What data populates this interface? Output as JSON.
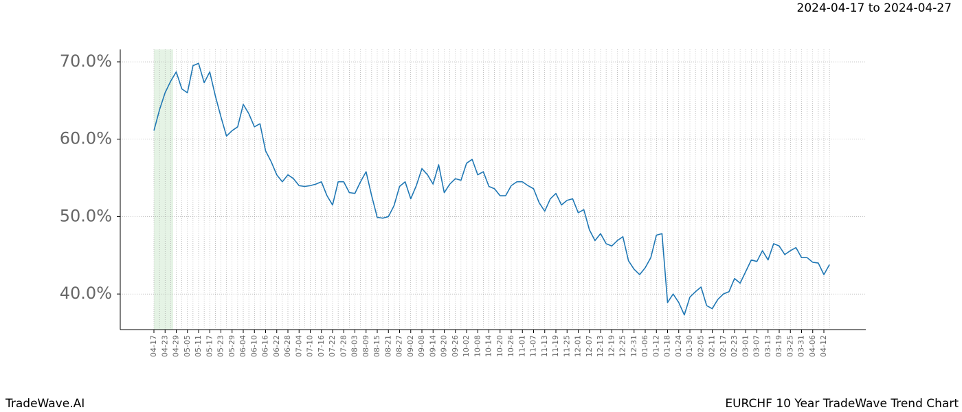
{
  "header": "2024-04-17 to 2024-04-27",
  "footer_left": "TradeWave.AI",
  "footer_right": "EURCHF 10 Year TradeWave Trend Chart",
  "chart_data": {
    "type": "line",
    "color": "#1f77b4",
    "grid": true,
    "ylim": [
      35.4,
      71.6
    ],
    "yticks": [
      {
        "value": 40,
        "label": "40.0%"
      },
      {
        "value": 50,
        "label": "50.0%"
      },
      {
        "value": 60,
        "label": "60.0%"
      },
      {
        "value": 70,
        "label": "70.0%"
      }
    ],
    "categories": [
      "04-17",
      null,
      "04-23",
      null,
      "04-29",
      null,
      "05-05",
      null,
      "05-11",
      null,
      "05-17",
      null,
      "05-23",
      null,
      "05-29",
      null,
      "06-04",
      null,
      "06-10",
      null,
      "06-16",
      null,
      "06-22",
      null,
      "06-28",
      null,
      "07-04",
      null,
      "07-10",
      null,
      "07-16",
      null,
      "07-22",
      null,
      "07-28",
      null,
      "08-03",
      null,
      "08-09",
      null,
      "08-15",
      null,
      "08-21",
      null,
      "08-27",
      null,
      "09-02",
      null,
      "09-08",
      null,
      "09-14",
      null,
      "09-20",
      null,
      "09-26",
      null,
      "10-02",
      null,
      "10-08",
      null,
      "10-14",
      null,
      "10-20",
      null,
      "10-26",
      null,
      "11-01",
      null,
      "11-07",
      null,
      "11-13",
      null,
      "11-19",
      null,
      "11-25",
      null,
      "12-01",
      null,
      "12-07",
      null,
      "12-13",
      null,
      "12-19",
      null,
      "12-25",
      null,
      "12-31",
      null,
      "01-06",
      null,
      "01-12",
      null,
      "01-18",
      null,
      "01-24",
      null,
      "01-30",
      null,
      "02-05",
      null,
      "02-11",
      null,
      "02-17",
      null,
      "02-23",
      null,
      "03-01",
      null,
      "03-07",
      null,
      "03-13",
      null,
      "03-19",
      null,
      "03-25",
      null,
      "03-31",
      null,
      "04-06",
      null,
      "04-12",
      null
    ],
    "values": [
      61.1,
      63.8,
      66,
      67.5,
      68.7,
      66.5,
      66,
      69.5,
      69.8,
      67.3,
      68.7,
      65.6,
      62.9,
      60.4,
      61.1,
      61.6,
      64.5,
      63.3,
      61.6,
      62,
      58.5,
      57.1,
      55.4,
      54.5,
      55.4,
      54.9,
      54,
      53.9,
      54,
      54.2,
      54.5,
      52.7,
      51.5,
      54.5,
      54.5,
      53.1,
      53,
      54.5,
      55.8,
      52.7,
      49.9,
      49.8,
      50,
      51.4,
      53.9,
      54.5,
      52.3,
      54,
      56.2,
      55.4,
      54.2,
      56.7,
      53.1,
      54.2,
      54.9,
      54.7,
      56.9,
      57.4,
      55.4,
      55.8,
      53.9,
      53.6,
      52.7,
      52.7,
      54,
      54.5,
      54.5,
      54,
      53.6,
      51.8,
      50.7,
      52.3,
      53,
      51.5,
      52.1,
      52.3,
      50.5,
      50.9,
      48.3,
      46.9,
      47.8,
      46.5,
      46.2,
      46.9,
      47.4,
      44.3,
      43.2,
      42.5,
      43.4,
      44.7,
      47.6,
      47.8,
      38.9,
      40,
      38.9,
      37.3,
      39.6,
      40.3,
      40.9,
      38.5,
      38.1,
      39.3,
      40,
      40.3,
      42,
      41.4,
      42.9,
      44.4,
      44.2,
      45.6,
      44.4,
      46.5,
      46.2,
      45.1,
      45.6,
      46,
      44.7,
      44.7,
      44.1,
      44,
      42.5,
      43.8
    ]
  }
}
